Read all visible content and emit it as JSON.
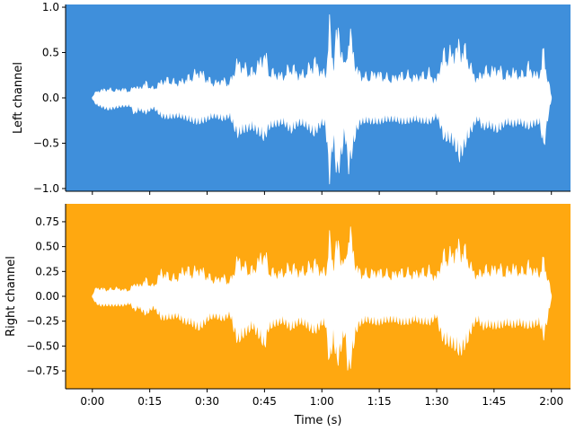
{
  "chart_data": [
    {
      "type": "area",
      "name": "left-channel",
      "ylabel": "Left channel",
      "xlabel": "",
      "background": "#3f8fdb",
      "fill": "#ffffff",
      "xlim": [
        -7,
        125
      ],
      "ylim": [
        -1.03,
        1.03
      ],
      "yticks": [
        1.0,
        0.5,
        0.0,
        -0.5,
        -1.0
      ],
      "ytick_labels": [
        "1.0",
        "0.5",
        "0.0",
        "−0.5",
        "−1.0"
      ],
      "xticks": [
        0,
        15,
        30,
        45,
        60,
        75,
        90,
        105,
        120
      ],
      "show_xtick_labels": false,
      "envelope": {
        "t": [
          0,
          1,
          2,
          4,
          6,
          8,
          10,
          11,
          12,
          14,
          16,
          18,
          20,
          22,
          24,
          26,
          28,
          30,
          32,
          34,
          36,
          37,
          38,
          40,
          42,
          44,
          45,
          46,
          48,
          50,
          52,
          54,
          56,
          58,
          60,
          61,
          62,
          63,
          64,
          65,
          66,
          67,
          68,
          69,
          70,
          72,
          74,
          76,
          78,
          80,
          82,
          84,
          86,
          88,
          90,
          91,
          92,
          94,
          96,
          98,
          99,
          100,
          101,
          102,
          104,
          106,
          108,
          110,
          112,
          114,
          116,
          117,
          118,
          119,
          120
        ],
        "upper": [
          0.01,
          0.08,
          0.1,
          0.12,
          0.1,
          0.12,
          0.09,
          0.18,
          0.12,
          0.2,
          0.12,
          0.22,
          0.25,
          0.2,
          0.24,
          0.3,
          0.36,
          0.26,
          0.2,
          0.24,
          0.2,
          0.38,
          0.48,
          0.4,
          0.35,
          0.5,
          0.62,
          0.38,
          0.32,
          0.3,
          0.44,
          0.3,
          0.36,
          0.5,
          0.34,
          0.32,
          0.94,
          0.45,
          0.94,
          0.72,
          0.4,
          0.88,
          0.7,
          0.4,
          0.32,
          0.28,
          0.34,
          0.3,
          0.26,
          0.3,
          0.32,
          0.28,
          0.3,
          0.34,
          0.22,
          0.48,
          0.58,
          0.6,
          0.7,
          0.6,
          0.4,
          0.28,
          0.26,
          0.38,
          0.36,
          0.4,
          0.3,
          0.36,
          0.3,
          0.42,
          0.3,
          0.34,
          0.62,
          0.28,
          0.01
        ],
        "lower": [
          -0.01,
          -0.08,
          -0.1,
          -0.14,
          -0.12,
          -0.1,
          -0.1,
          -0.2,
          -0.14,
          -0.18,
          -0.12,
          -0.22,
          -0.24,
          -0.22,
          -0.24,
          -0.28,
          -0.3,
          -0.26,
          -0.22,
          -0.26,
          -0.22,
          -0.35,
          -0.44,
          -0.38,
          -0.36,
          -0.44,
          -0.5,
          -0.36,
          -0.32,
          -0.3,
          -0.4,
          -0.3,
          -0.34,
          -0.44,
          -0.3,
          -0.34,
          -0.95,
          -0.5,
          -0.95,
          -0.7,
          -0.42,
          -0.84,
          -0.62,
          -0.4,
          -0.3,
          -0.28,
          -0.3,
          -0.28,
          -0.26,
          -0.28,
          -0.3,
          -0.26,
          -0.28,
          -0.3,
          -0.22,
          -0.34,
          -0.5,
          -0.5,
          -0.72,
          -0.5,
          -0.4,
          -0.3,
          -0.26,
          -0.36,
          -0.34,
          -0.4,
          -0.3,
          -0.32,
          -0.3,
          -0.36,
          -0.3,
          -0.3,
          -0.6,
          -0.26,
          -0.01
        ]
      }
    },
    {
      "type": "area",
      "name": "right-channel",
      "ylabel": "Right channel",
      "xlabel": "Time (s)",
      "background": "#ffa810",
      "fill": "#ffffff",
      "xlim": [
        -7,
        125
      ],
      "ylim": [
        -0.93,
        0.93
      ],
      "yticks": [
        0.75,
        0.5,
        0.25,
        0.0,
        -0.25,
        -0.5,
        -0.75
      ],
      "ytick_labels": [
        "0.75",
        "0.50",
        "0.25",
        "0.00",
        "−0.25",
        "−0.50",
        "−0.75"
      ],
      "xticks": [
        0,
        15,
        30,
        45,
        60,
        75,
        90,
        105,
        120
      ],
      "xtick_labels": [
        "0:00",
        "0:15",
        "0:30",
        "0:45",
        "1:00",
        "1:15",
        "1:30",
        "1:45",
        "2:00"
      ],
      "show_xtick_labels": true,
      "envelope": {
        "t": [
          0,
          1,
          2,
          4,
          6,
          8,
          10,
          11,
          12,
          14,
          16,
          18,
          20,
          22,
          24,
          26,
          28,
          30,
          32,
          34,
          36,
          37,
          38,
          40,
          42,
          44,
          45,
          46,
          48,
          50,
          52,
          54,
          56,
          58,
          60,
          61,
          62,
          63,
          64,
          65,
          66,
          67,
          68,
          69,
          70,
          72,
          74,
          76,
          78,
          80,
          82,
          84,
          86,
          88,
          90,
          91,
          92,
          94,
          96,
          98,
          99,
          100,
          101,
          102,
          104,
          106,
          108,
          110,
          112,
          114,
          116,
          117,
          118,
          119,
          120
        ],
        "upper": [
          0.01,
          0.1,
          0.1,
          0.08,
          0.1,
          0.08,
          0.08,
          0.18,
          0.12,
          0.2,
          0.12,
          0.3,
          0.25,
          0.22,
          0.34,
          0.3,
          0.34,
          0.26,
          0.2,
          0.24,
          0.18,
          0.32,
          0.46,
          0.36,
          0.32,
          0.48,
          0.55,
          0.34,
          0.28,
          0.3,
          0.38,
          0.3,
          0.34,
          0.42,
          0.3,
          0.3,
          0.68,
          0.4,
          0.68,
          0.5,
          0.38,
          0.84,
          0.62,
          0.36,
          0.3,
          0.28,
          0.3,
          0.3,
          0.26,
          0.3,
          0.3,
          0.28,
          0.3,
          0.32,
          0.22,
          0.42,
          0.5,
          0.52,
          0.62,
          0.52,
          0.36,
          0.28,
          0.26,
          0.34,
          0.32,
          0.36,
          0.3,
          0.36,
          0.3,
          0.38,
          0.3,
          0.3,
          0.44,
          0.26,
          0.01
        ],
        "lower": [
          -0.01,
          -0.08,
          -0.1,
          -0.1,
          -0.1,
          -0.1,
          -0.08,
          -0.16,
          -0.12,
          -0.2,
          -0.12,
          -0.24,
          -0.24,
          -0.22,
          -0.28,
          -0.3,
          -0.36,
          -0.26,
          -0.22,
          -0.26,
          -0.2,
          -0.36,
          -0.5,
          -0.4,
          -0.34,
          -0.46,
          -0.56,
          -0.36,
          -0.3,
          -0.28,
          -0.36,
          -0.28,
          -0.32,
          -0.4,
          -0.3,
          -0.32,
          -0.74,
          -0.44,
          -0.74,
          -0.56,
          -0.4,
          -0.86,
          -0.6,
          -0.38,
          -0.3,
          -0.26,
          -0.3,
          -0.28,
          -0.26,
          -0.28,
          -0.3,
          -0.26,
          -0.28,
          -0.3,
          -0.22,
          -0.4,
          -0.5,
          -0.52,
          -0.62,
          -0.5,
          -0.38,
          -0.28,
          -0.26,
          -0.34,
          -0.32,
          -0.34,
          -0.3,
          -0.32,
          -0.3,
          -0.34,
          -0.3,
          -0.3,
          -0.44,
          -0.24,
          -0.01
        ]
      }
    }
  ]
}
